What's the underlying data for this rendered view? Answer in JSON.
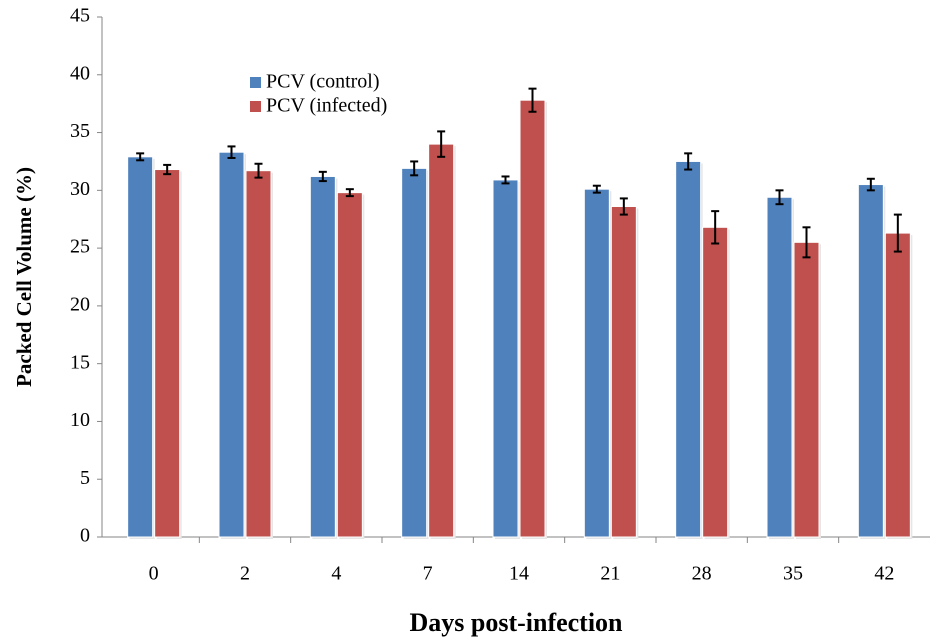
{
  "chart_data": {
    "type": "bar",
    "x_label": "Days post-infection",
    "y_label": "Packed Cell Volume  (%)",
    "categories": [
      "0",
      "2",
      "4",
      "7",
      "14",
      "21",
      "28",
      "35",
      "42"
    ],
    "series": [
      {
        "name": "PCV (control)",
        "color": "#4f81bd",
        "values": [
          32.9,
          33.3,
          31.2,
          31.9,
          30.9,
          30.1,
          32.5,
          29.4,
          30.5
        ],
        "errors": [
          0.3,
          0.5,
          0.4,
          0.6,
          0.3,
          0.3,
          0.7,
          0.6,
          0.5
        ]
      },
      {
        "name": "PCV (infected)",
        "color": "#c0504d",
        "values": [
          31.8,
          31.7,
          29.8,
          34.0,
          37.8,
          28.6,
          26.8,
          25.5,
          26.3
        ],
        "errors": [
          0.4,
          0.6,
          0.3,
          1.1,
          1.0,
          0.7,
          1.4,
          1.3,
          1.6
        ]
      }
    ],
    "ylim": [
      0,
      45
    ],
    "yticks": [
      0,
      5,
      10,
      15,
      20,
      25,
      30,
      35,
      40,
      45
    ],
    "grid": false,
    "legend": "upper-left"
  }
}
